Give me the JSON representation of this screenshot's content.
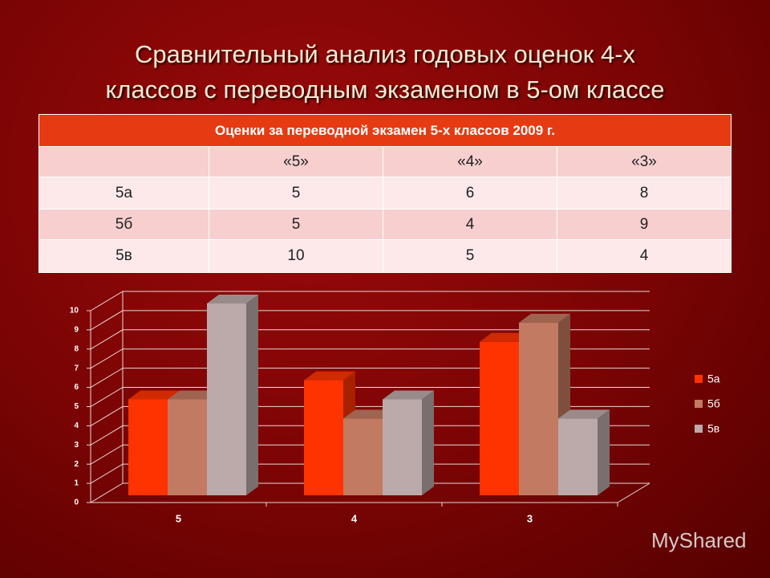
{
  "title": [
    "Сравнительный анализ годовых оценок 4-х",
    "классов с переводным экзаменом в 5-ом классе"
  ],
  "table": {
    "title": "Оценки за переводной экзамен 5-х классов 2009 г.",
    "columns": [
      "«5»",
      "«4»",
      "«3»"
    ],
    "rows": [
      [
        "5а",
        5,
        6,
        8
      ],
      [
        "5б",
        5,
        4,
        9
      ],
      [
        "5в",
        10,
        5,
        4
      ]
    ]
  },
  "chart_data": {
    "type": "bar3d",
    "categories": [
      "5",
      "4",
      "3"
    ],
    "series": [
      {
        "name": "5а",
        "color": "#ff3300",
        "values": [
          5,
          6,
          8
        ]
      },
      {
        "name": "5б",
        "color": "#c27a62",
        "values": [
          5,
          4,
          9
        ]
      },
      {
        "name": "5в",
        "color": "#bcaaaa",
        "values": [
          10,
          5,
          4
        ]
      }
    ],
    "ylim": [
      0,
      10
    ],
    "yticks": [
      0,
      1,
      2,
      3,
      4,
      5,
      6,
      7,
      8,
      9,
      10
    ],
    "grid": true,
    "legend": "right"
  },
  "watermark": "MyShared"
}
